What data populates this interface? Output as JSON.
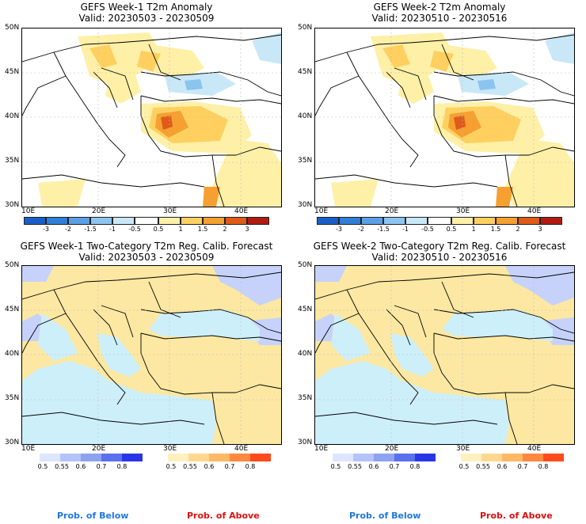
{
  "panels": [
    {
      "title": "GEFS Week-1 T2m Anomaly",
      "valid": "Valid: 20230503 - 20230509"
    },
    {
      "title": "GEFS Week-2 T2m Anomaly",
      "valid": "Valid: 20230510 - 20230516"
    },
    {
      "title": "GEFS Week-1 Two-Category T2m Reg. Calib. Forecast",
      "valid": "Valid: 20230503 - 20230509"
    },
    {
      "title": "GEFS Week-2 Two-Category T2m Reg. Calib. Forecast",
      "valid": "Valid: 20230510 - 20230516"
    }
  ],
  "lat_labels": [
    "50N",
    "45N",
    "40N",
    "35N",
    "30N"
  ],
  "lon_labels": [
    "10E",
    "20E",
    "30E",
    "40E"
  ],
  "anomaly_colorbar": {
    "labels": [
      "-3",
      "-2",
      "-1.5",
      "-1",
      "-0.5",
      "0.5",
      "1",
      "1.5",
      "2",
      "3"
    ],
    "colors": [
      "#1a5fc8",
      "#2f7fd8",
      "#5aa0e6",
      "#8cc4f0",
      "#c8e8f8",
      "#ffffff",
      "#fff0a8",
      "#ffd060",
      "#f5a030",
      "#e05a18",
      "#b01c10"
    ]
  },
  "prob_colorbar": {
    "labels": [
      "0.5",
      "0.55",
      "0.6",
      "0.7",
      "0.8"
    ],
    "below_colors": [
      "#dde6ff",
      "#b4c4fa",
      "#8ea2f2",
      "#5a70ec",
      "#2a36e6"
    ],
    "above_colors": [
      "#fff0c0",
      "#ffd890",
      "#ffb866",
      "#ff8840",
      "#ff4a1e"
    ]
  },
  "footer": {
    "below_label": "Prob. of Below",
    "above_label": "Prob. of Above",
    "below_color": "#1e78e0",
    "above_color": "#e01010"
  },
  "map_colors": {
    "land_near_normal": "#ffffff",
    "sea_prob": "#cdeffa",
    "land_warm_prob": "#fce8a2",
    "cool_prob": "#c6d2fa"
  }
}
